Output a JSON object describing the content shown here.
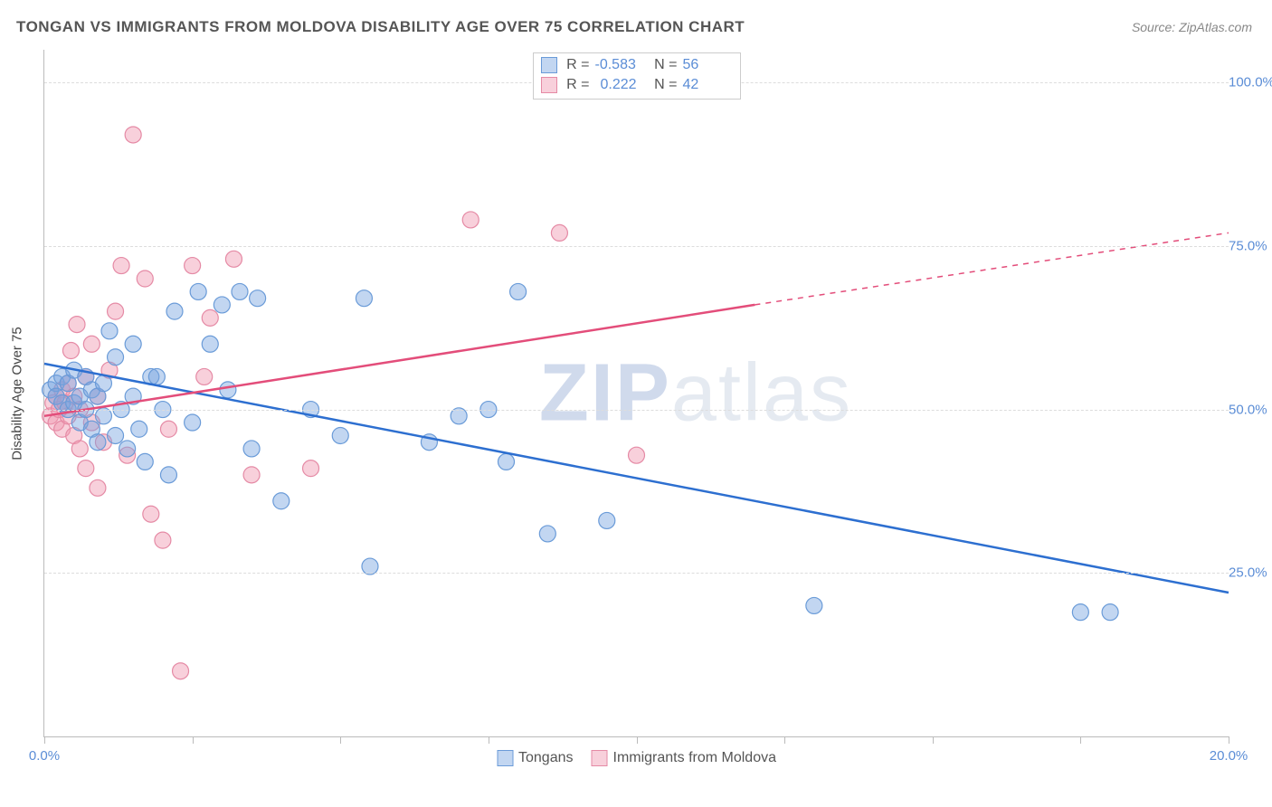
{
  "title": "TONGAN VS IMMIGRANTS FROM MOLDOVA DISABILITY AGE OVER 75 CORRELATION CHART",
  "source_label": "Source:",
  "source_value": "ZipAtlas.com",
  "watermark": {
    "bold": "ZIP",
    "rest": "atlas"
  },
  "y_axis_label": "Disability Age Over 75",
  "chart": {
    "type": "scatter-with-regression",
    "background_color": "#ffffff",
    "grid_color": "#dddddd",
    "axis_color": "#bbbbbb",
    "tick_label_color": "#5b8dd6",
    "xlim": [
      0,
      20
    ],
    "ylim": [
      0,
      105
    ],
    "x_ticks": [
      0,
      2.5,
      5,
      7.5,
      10,
      12.5,
      15,
      17.5,
      20
    ],
    "x_tick_labels_shown": {
      "0": "0.0%",
      "20": "20.0%"
    },
    "y_ticks": [
      25,
      50,
      75,
      100
    ],
    "y_tick_labels": {
      "25": "25.0%",
      "50": "50.0%",
      "75": "75.0%",
      "100": "100.0%"
    },
    "marker_radius": 9,
    "marker_stroke_width": 1.2,
    "line_width": 2.5,
    "series": [
      {
        "name": "Tongans",
        "color_fill": "rgba(120,165,225,0.45)",
        "color_stroke": "#6a9bd8",
        "line_color": "#2d6fd0",
        "R": "-0.583",
        "N": "56",
        "regression": {
          "x1": 0,
          "y1": 57,
          "x2": 20,
          "y2": 22
        },
        "points": [
          [
            0.1,
            53
          ],
          [
            0.2,
            54
          ],
          [
            0.2,
            52
          ],
          [
            0.3,
            55
          ],
          [
            0.3,
            51
          ],
          [
            0.4,
            54
          ],
          [
            0.4,
            50
          ],
          [
            0.5,
            56
          ],
          [
            0.5,
            51
          ],
          [
            0.6,
            52
          ],
          [
            0.6,
            48
          ],
          [
            0.7,
            55
          ],
          [
            0.7,
            50
          ],
          [
            0.8,
            53
          ],
          [
            0.8,
            47
          ],
          [
            0.9,
            52
          ],
          [
            0.9,
            45
          ],
          [
            1.0,
            54
          ],
          [
            1.0,
            49
          ],
          [
            1.1,
            62
          ],
          [
            1.2,
            46
          ],
          [
            1.2,
            58
          ],
          [
            1.3,
            50
          ],
          [
            1.4,
            44
          ],
          [
            1.5,
            60
          ],
          [
            1.5,
            52
          ],
          [
            1.6,
            47
          ],
          [
            1.7,
            42
          ],
          [
            1.8,
            55
          ],
          [
            1.9,
            55
          ],
          [
            2.0,
            50
          ],
          [
            2.1,
            40
          ],
          [
            2.2,
            65
          ],
          [
            2.5,
            48
          ],
          [
            2.6,
            68
          ],
          [
            2.8,
            60
          ],
          [
            3.0,
            66
          ],
          [
            3.1,
            53
          ],
          [
            3.3,
            68
          ],
          [
            3.5,
            44
          ],
          [
            3.6,
            67
          ],
          [
            4.0,
            36
          ],
          [
            4.5,
            50
          ],
          [
            5.0,
            46
          ],
          [
            5.4,
            67
          ],
          [
            5.5,
            26
          ],
          [
            6.5,
            45
          ],
          [
            7.0,
            49
          ],
          [
            7.5,
            50
          ],
          [
            7.8,
            42
          ],
          [
            8.0,
            68
          ],
          [
            8.5,
            31
          ],
          [
            9.5,
            33
          ],
          [
            13.0,
            20
          ],
          [
            17.5,
            19
          ],
          [
            18.0,
            19
          ]
        ]
      },
      {
        "name": "Immigrants from Moldova",
        "color_fill": "rgba(240,150,175,0.45)",
        "color_stroke": "#e58aa5",
        "line_color": "#e34d7a",
        "R": "0.222",
        "N": "42",
        "regression_solid": {
          "x1": 0,
          "y1": 49,
          "x2": 12,
          "y2": 66
        },
        "regression_dashed": {
          "x1": 12,
          "y1": 66,
          "x2": 20,
          "y2": 77
        },
        "points": [
          [
            0.1,
            49
          ],
          [
            0.15,
            51
          ],
          [
            0.2,
            48
          ],
          [
            0.2,
            52
          ],
          [
            0.25,
            50
          ],
          [
            0.3,
            53
          ],
          [
            0.3,
            47
          ],
          [
            0.35,
            51
          ],
          [
            0.4,
            54
          ],
          [
            0.4,
            49
          ],
          [
            0.45,
            59
          ],
          [
            0.5,
            46
          ],
          [
            0.5,
            52
          ],
          [
            0.55,
            63
          ],
          [
            0.6,
            50
          ],
          [
            0.6,
            44
          ],
          [
            0.7,
            55
          ],
          [
            0.7,
            41
          ],
          [
            0.8,
            48
          ],
          [
            0.8,
            60
          ],
          [
            0.9,
            52
          ],
          [
            0.9,
            38
          ],
          [
            1.0,
            45
          ],
          [
            1.1,
            56
          ],
          [
            1.2,
            65
          ],
          [
            1.3,
            72
          ],
          [
            1.4,
            43
          ],
          [
            1.5,
            92
          ],
          [
            1.7,
            70
          ],
          [
            1.8,
            34
          ],
          [
            2.0,
            30
          ],
          [
            2.1,
            47
          ],
          [
            2.3,
            10
          ],
          [
            2.5,
            72
          ],
          [
            2.7,
            55
          ],
          [
            2.8,
            64
          ],
          [
            3.2,
            73
          ],
          [
            3.5,
            40
          ],
          [
            4.5,
            41
          ],
          [
            7.2,
            79
          ],
          [
            8.7,
            77
          ],
          [
            10.0,
            43
          ]
        ]
      }
    ]
  },
  "legend_top_labels": {
    "R": "R =",
    "N": "N ="
  },
  "legend_bottom": [
    "Tongans",
    "Immigrants from Moldova"
  ]
}
